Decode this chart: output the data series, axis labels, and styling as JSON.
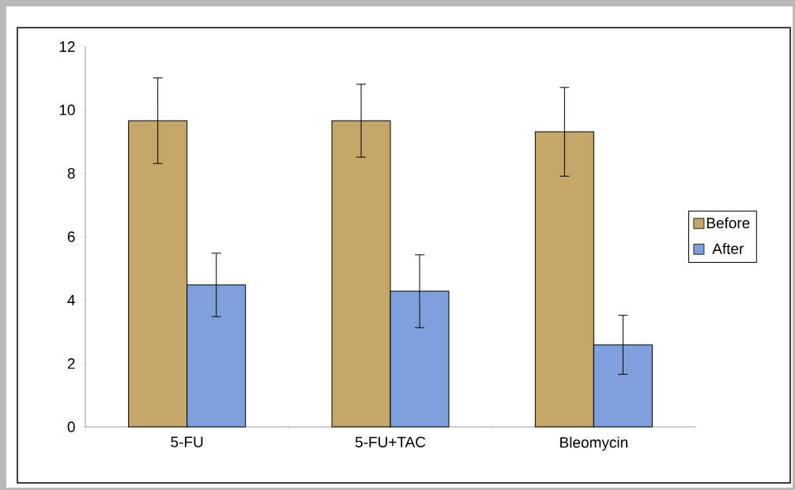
{
  "chart_data": {
    "type": "bar",
    "categories": [
      "5-FU",
      "5-FU+TAC",
      "Bleomycin"
    ],
    "series": [
      {
        "name": "Before",
        "color": "#c4a56a",
        "values": [
          9.66,
          9.66,
          9.31
        ],
        "errors": [
          1.35,
          1.15,
          1.4
        ]
      },
      {
        "name": "After",
        "color": "#7f9fdc",
        "values": [
          4.48,
          4.28,
          2.59
        ],
        "errors": [
          1.0,
          1.15,
          0.93
        ]
      }
    ],
    "ylim": [
      0,
      12
    ],
    "yticks": [
      0,
      2,
      4,
      6,
      8,
      10,
      12
    ],
    "grid": false,
    "legend": "right"
  }
}
